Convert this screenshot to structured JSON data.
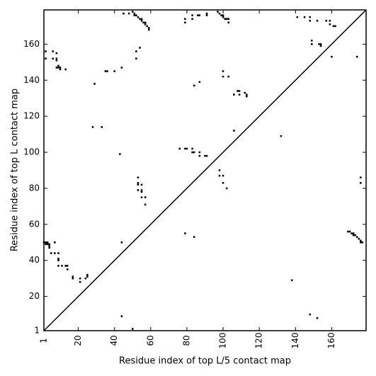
{
  "chart_data": {
    "type": "scatter",
    "xlabel": "Residue index of top L/5 contact map",
    "ylabel": "Residue index of top L contact map",
    "color": "#000000",
    "xlim": [
      1,
      179
    ],
    "ylim": [
      1,
      179
    ],
    "xticks": [
      1,
      20,
      40,
      60,
      80,
      100,
      120,
      140,
      160
    ],
    "yticks": [
      1,
      20,
      40,
      60,
      80,
      100,
      120,
      140,
      160
    ],
    "x": [
      1,
      2,
      3,
      4,
      4,
      3,
      2,
      4,
      5,
      7,
      7,
      9,
      9,
      9,
      9,
      11,
      13,
      14,
      14,
      17,
      17,
      21,
      21,
      25,
      25,
      24,
      44,
      44,
      50,
      152,
      148,
      138,
      79,
      84,
      169,
      170,
      171,
      172,
      172,
      173,
      174,
      175,
      176,
      176,
      177,
      53,
      53,
      53,
      53,
      55,
      55,
      55,
      55,
      57,
      57,
      43,
      28,
      33,
      29,
      35,
      36,
      40,
      44,
      2,
      2,
      6,
      6,
      8,
      8,
      8,
      8,
      9,
      10,
      10,
      9,
      13,
      52,
      52,
      54,
      45,
      48,
      50,
      51,
      51,
      52,
      53,
      54,
      55,
      55,
      56,
      57,
      57,
      58,
      59,
      59,
      79,
      79,
      83,
      83,
      86,
      87,
      91,
      91,
      97,
      98,
      99,
      100,
      100,
      101,
      102,
      103,
      103,
      141,
      145,
      148,
      148,
      152,
      157,
      159,
      159,
      161,
      162,
      149,
      149,
      153,
      154,
      154,
      160,
      174,
      100,
      100,
      103,
      106,
      108,
      109,
      109,
      112,
      113,
      113,
      87,
      84,
      106,
      132,
      76,
      79,
      80,
      83,
      83,
      84,
      87,
      87,
      90,
      91,
      98,
      98,
      100,
      100,
      102,
      176,
      176
    ],
    "values": [
      50,
      50,
      50,
      49,
      48,
      49,
      49,
      47,
      44,
      50,
      44,
      44,
      41,
      40,
      37,
      37,
      37,
      37,
      35,
      31,
      30,
      30,
      28,
      32,
      31,
      30,
      50,
      9,
      2,
      8,
      10,
      29,
      55,
      53,
      56,
      56,
      55,
      55,
      54,
      54,
      53,
      52,
      51,
      50,
      50,
      86,
      83,
      82,
      79,
      82,
      79,
      78,
      75,
      75,
      71,
      99,
      114,
      114,
      138,
      145,
      145,
      145,
      147,
      152,
      156,
      156,
      152,
      155,
      152,
      151,
      147,
      147,
      147,
      146,
      148,
      146,
      152,
      156,
      158,
      177,
      177,
      178,
      177,
      176,
      176,
      175,
      174,
      174,
      173,
      172,
      172,
      171,
      170,
      169,
      168,
      174,
      172,
      176,
      174,
      176,
      176,
      177,
      176,
      178,
      177,
      176,
      176,
      175,
      174,
      174,
      174,
      172,
      175,
      175,
      175,
      173,
      173,
      173,
      173,
      171,
      170,
      170,
      162,
      160,
      160,
      160,
      159,
      153,
      153,
      145,
      142,
      142,
      132,
      134,
      134,
      132,
      133,
      132,
      131,
      139,
      137,
      112,
      109,
      102,
      102,
      102,
      102,
      100,
      100,
      100,
      98,
      98,
      98,
      90,
      87,
      87,
      83,
      80,
      86,
      83
    ]
  }
}
